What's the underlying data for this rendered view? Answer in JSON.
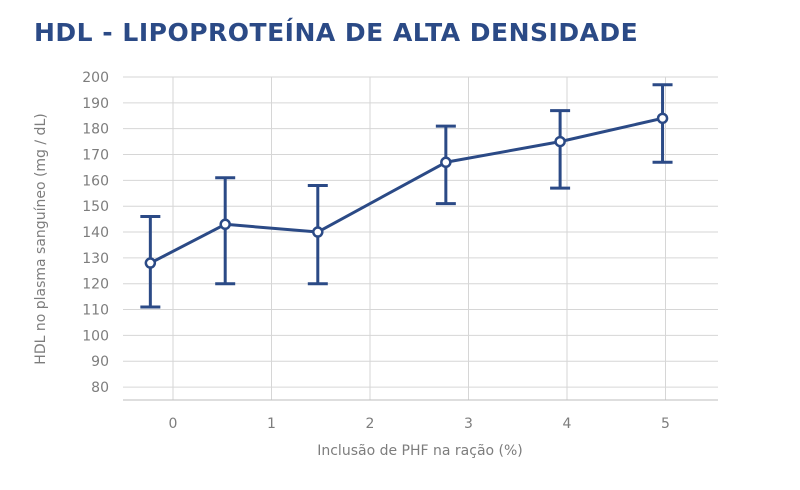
{
  "colors": {
    "series": "#2b4a86",
    "grid": "#d6d6d6",
    "text": "#7d7d7d",
    "title": "#2b4a86"
  },
  "chart_data": {
    "type": "line",
    "title": "HDL - LIPOPROTEÍNA DE ALTA DENSIDADE",
    "xlabel": "Inclusão de PHF na ração (%)",
    "ylabel": "HDL no plasma sanguíneo (mg / dL)",
    "x_ticks": [
      "0",
      "1",
      "2",
      "3",
      "4",
      "5"
    ],
    "y_ticks": [
      80,
      90,
      100,
      110,
      120,
      130,
      140,
      150,
      160,
      170,
      180,
      190,
      200
    ],
    "ylim": [
      75,
      200
    ],
    "grid": true,
    "series": [
      {
        "name": "HDL",
        "points": [
          {
            "x": -0.23,
            "y": 128,
            "err_low": 111,
            "err_high": 146
          },
          {
            "x": 0.53,
            "y": 143,
            "err_low": 120,
            "err_high": 161
          },
          {
            "x": 1.47,
            "y": 140,
            "err_low": 120,
            "err_high": 158
          },
          {
            "x": 2.77,
            "y": 167,
            "err_low": 151,
            "err_high": 181
          },
          {
            "x": 3.93,
            "y": 175,
            "err_low": 157,
            "err_high": 187
          },
          {
            "x": 4.97,
            "y": 184,
            "err_low": 167,
            "err_high": 197
          }
        ]
      }
    ]
  }
}
